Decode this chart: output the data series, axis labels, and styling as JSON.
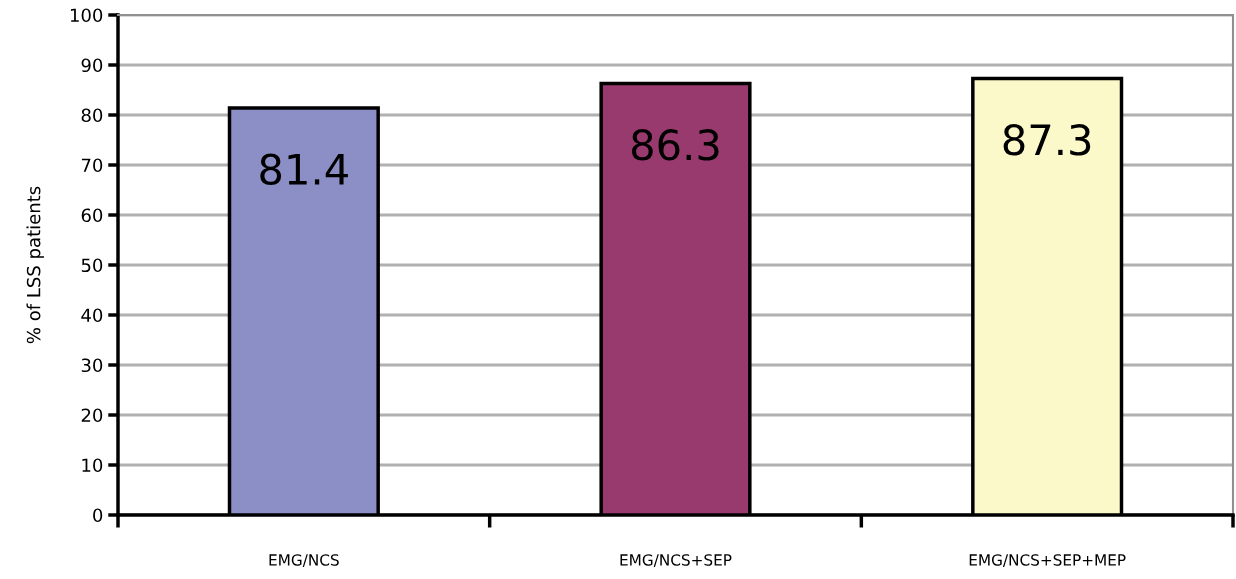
{
  "chart_data": {
    "type": "bar",
    "ylabel": "% of LSS patients",
    "categories": [
      "EMG/NCS",
      "EMG/NCS+SEP",
      "EMG/NCS+SEP+MEP"
    ],
    "values": [
      81.4,
      86.3,
      87.3
    ],
    "colors": [
      "#8c8fc6",
      "#993a6e",
      "#fbf9c9"
    ],
    "ylim": [
      0,
      100
    ],
    "yticks": [
      0,
      10,
      20,
      30,
      40,
      50,
      60,
      70,
      80,
      90,
      100
    ],
    "grid": "y",
    "data_labels": true
  }
}
